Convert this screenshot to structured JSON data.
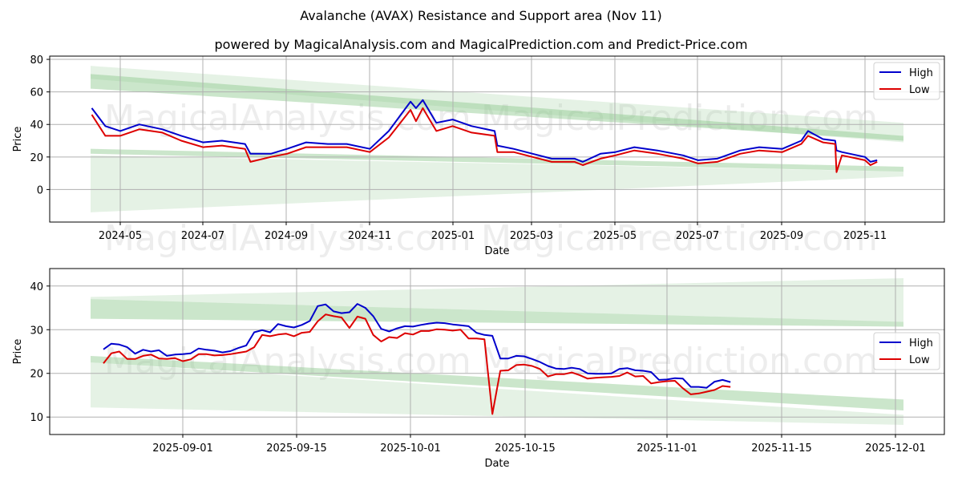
{
  "title": "Avalanche (AVAX) Resistance and Support area (Nov 11)",
  "subtitle": "powered by MagicalAnalysis.com and MagicalPrediction.com and Predict-Price.com",
  "watermarks": [
    "MagicalAnalysis.com",
    "MagicalPrediction.com"
  ],
  "colors": {
    "high": "#0000cc",
    "low": "#dd0000",
    "band_light": "#c8e6c8",
    "band_mid": "#a5d6a5",
    "grid": "#b0b0b0"
  },
  "chart_data": [
    {
      "type": "line",
      "title": "Full history",
      "xlabel": "Date",
      "ylabel": "Price",
      "ylim": [
        -20,
        82
      ],
      "yticks": [
        0,
        20,
        40,
        60,
        80
      ],
      "xticks": [
        "2024-05",
        "2024-07",
        "2024-09",
        "2024-11",
        "2025-01",
        "2025-03",
        "2025-05",
        "2025-07",
        "2025-09",
        "2025-11"
      ],
      "grid": true,
      "legend_position": "upper right",
      "legend": [
        "High",
        "Low"
      ],
      "x": [
        "2024-04-10",
        "2024-04-20",
        "2024-05-01",
        "2024-05-15",
        "2024-06-01",
        "2024-06-15",
        "2024-07-01",
        "2024-07-15",
        "2024-08-01",
        "2024-08-05",
        "2024-08-20",
        "2024-09-01",
        "2024-09-15",
        "2024-10-01",
        "2024-10-15",
        "2024-11-01",
        "2024-11-15",
        "2024-12-01",
        "2024-12-05",
        "2024-12-10",
        "2024-12-20",
        "2025-01-01",
        "2025-01-15",
        "2025-02-01",
        "2025-02-03",
        "2025-02-15",
        "2025-03-01",
        "2025-03-15",
        "2025-04-01",
        "2025-04-07",
        "2025-04-20",
        "2025-05-01",
        "2025-05-15",
        "2025-06-01",
        "2025-06-20",
        "2025-07-01",
        "2025-07-15",
        "2025-08-01",
        "2025-08-15",
        "2025-09-01",
        "2025-09-15",
        "2025-09-20",
        "2025-10-01",
        "2025-10-10",
        "2025-10-11",
        "2025-10-15",
        "2025-11-01",
        "2025-11-05",
        "2025-11-10"
      ],
      "series": [
        {
          "name": "High",
          "values": [
            50,
            39,
            36,
            40,
            37,
            33,
            29,
            30,
            28,
            22,
            22,
            25,
            29,
            28,
            28,
            25,
            36,
            54,
            50,
            55,
            41,
            43,
            39,
            36,
            27,
            25,
            22,
            19,
            19,
            17,
            22,
            23,
            26,
            24,
            21,
            18,
            19,
            24,
            26,
            25,
            30,
            36,
            31,
            30,
            24,
            23,
            20,
            17,
            18
          ]
        },
        {
          "name": "Low",
          "values": [
            46,
            33,
            33,
            37,
            35,
            30,
            26,
            27,
            25,
            17,
            20,
            22,
            26,
            26,
            26,
            23,
            32,
            49,
            42,
            50,
            36,
            39,
            35,
            33,
            23,
            23,
            20,
            17,
            17,
            15,
            19,
            21,
            24,
            22,
            19,
            16,
            17,
            22,
            24,
            23,
            28,
            33,
            29,
            28,
            10.7,
            21,
            18,
            15,
            17
          ]
        }
      ],
      "bands": [
        {
          "name": "outer upper",
          "start": [
            76,
            68
          ],
          "end": [
            41,
            29
          ]
        },
        {
          "name": "inner upper",
          "start": [
            71,
            62
          ],
          "end": [
            33,
            30
          ]
        },
        {
          "name": "inner lower",
          "start": [
            25,
            22
          ],
          "end": [
            14,
            11
          ]
        },
        {
          "name": "outer lower",
          "start": [
            21,
            -14
          ],
          "end": [
            11,
            8
          ]
        }
      ]
    },
    {
      "type": "line",
      "title": "Recent zoom",
      "xlabel": "Date",
      "ylabel": "Price",
      "ylim": [
        6,
        44
      ],
      "yticks": [
        10,
        20,
        30,
        40
      ],
      "xticks": [
        "2025-09-01",
        "2025-09-15",
        "2025-10-01",
        "2025-10-15",
        "2025-11-01",
        "2025-11-15",
        "2025-12-01"
      ],
      "grid": true,
      "legend_position": "center right",
      "legend": [
        "High",
        "Low"
      ],
      "x": [
        "08-22",
        "08-23",
        "08-24",
        "08-25",
        "08-26",
        "08-27",
        "08-28",
        "08-29",
        "08-30",
        "08-31",
        "09-01",
        "09-02",
        "09-03",
        "09-04",
        "09-05",
        "09-06",
        "09-07",
        "09-08",
        "09-09",
        "09-10",
        "09-11",
        "09-12",
        "09-13",
        "09-14",
        "09-15",
        "09-16",
        "09-17",
        "09-18",
        "09-19",
        "09-20",
        "09-21",
        "09-22",
        "09-23",
        "09-24",
        "09-25",
        "09-26",
        "09-27",
        "09-28",
        "09-29",
        "09-30",
        "10-01",
        "10-02",
        "10-03",
        "10-04",
        "10-05",
        "10-06",
        "10-07",
        "10-08",
        "10-09",
        "10-10",
        "10-11",
        "10-12",
        "10-13",
        "10-14",
        "10-15",
        "10-16",
        "10-17",
        "10-18",
        "10-19",
        "10-20",
        "10-21",
        "10-22",
        "10-23",
        "10-24",
        "10-25",
        "10-26",
        "10-27",
        "10-28",
        "10-29",
        "10-30",
        "10-31",
        "11-01",
        "11-02",
        "11-03",
        "11-04",
        "11-05",
        "11-06",
        "11-07",
        "11-08",
        "11-09"
      ],
      "series": [
        {
          "name": "High",
          "values": [
            25.5,
            26.8,
            26.6,
            26.0,
            24.5,
            25.4,
            25.0,
            25.3,
            24.0,
            24.3,
            24.4,
            24.6,
            25.7,
            25.4,
            25.2,
            24.8,
            25.1,
            25.8,
            26.4,
            29.4,
            29.9,
            29.4,
            31.3,
            30.8,
            30.5,
            31.1,
            32.0,
            35.4,
            35.8,
            34.2,
            33.8,
            34.0,
            35.9,
            35.0,
            33.1,
            30.2,
            29.6,
            30.3,
            30.8,
            30.7,
            31.1,
            31.4,
            31.6,
            31.5,
            31.2,
            31.0,
            30.8,
            29.3,
            28.8,
            28.6,
            23.4,
            23.4,
            24.0,
            23.9,
            23.3,
            22.6,
            21.7,
            21.1,
            21.0,
            21.3,
            21.0,
            20.0,
            19.9,
            19.9,
            20.0,
            21.0,
            21.2,
            20.7,
            20.6,
            20.3,
            18.5,
            18.6,
            18.9,
            18.8,
            16.9,
            16.9,
            16.7,
            18.1,
            18.5,
            18.0
          ]
        },
        {
          "name": "Low",
          "values": [
            22.3,
            24.6,
            25.0,
            23.3,
            23.3,
            24.0,
            24.3,
            23.4,
            23.3,
            23.5,
            22.8,
            23.2,
            24.4,
            24.4,
            24.1,
            24.2,
            24.4,
            24.7,
            25.0,
            26.0,
            28.8,
            28.5,
            28.9,
            29.1,
            28.5,
            29.3,
            29.5,
            31.9,
            33.5,
            33.1,
            32.8,
            30.4,
            33.0,
            32.5,
            28.8,
            27.3,
            28.3,
            28.1,
            29.2,
            28.9,
            29.7,
            29.7,
            30.1,
            30.0,
            29.8,
            30.0,
            28.0,
            28.0,
            27.8,
            10.7,
            20.6,
            20.7,
            21.9,
            22.0,
            21.7,
            21.0,
            19.3,
            19.8,
            19.8,
            20.2,
            19.6,
            18.8,
            19.0,
            19.1,
            19.2,
            19.4,
            20.2,
            19.3,
            19.4,
            17.7,
            18.0,
            18.2,
            18.3,
            16.6,
            15.2,
            15.4,
            15.8,
            16.2,
            17.1,
            16.9
          ]
        }
      ],
      "bands": [
        {
          "name": "outer upper",
          "start": [
            37.5,
            37.0
          ],
          "end": [
            41.8,
            31.8
          ]
        },
        {
          "name": "inner upper",
          "start": [
            37.0,
            32.5
          ],
          "end": [
            31.8,
            30.7
          ]
        },
        {
          "name": "inner lower",
          "start": [
            24.0,
            22.5
          ],
          "end": [
            14.0,
            11.5
          ]
        },
        {
          "name": "outer lower",
          "start": [
            22.5,
            12.2
          ],
          "end": [
            10.5,
            8.2
          ]
        }
      ]
    }
  ]
}
